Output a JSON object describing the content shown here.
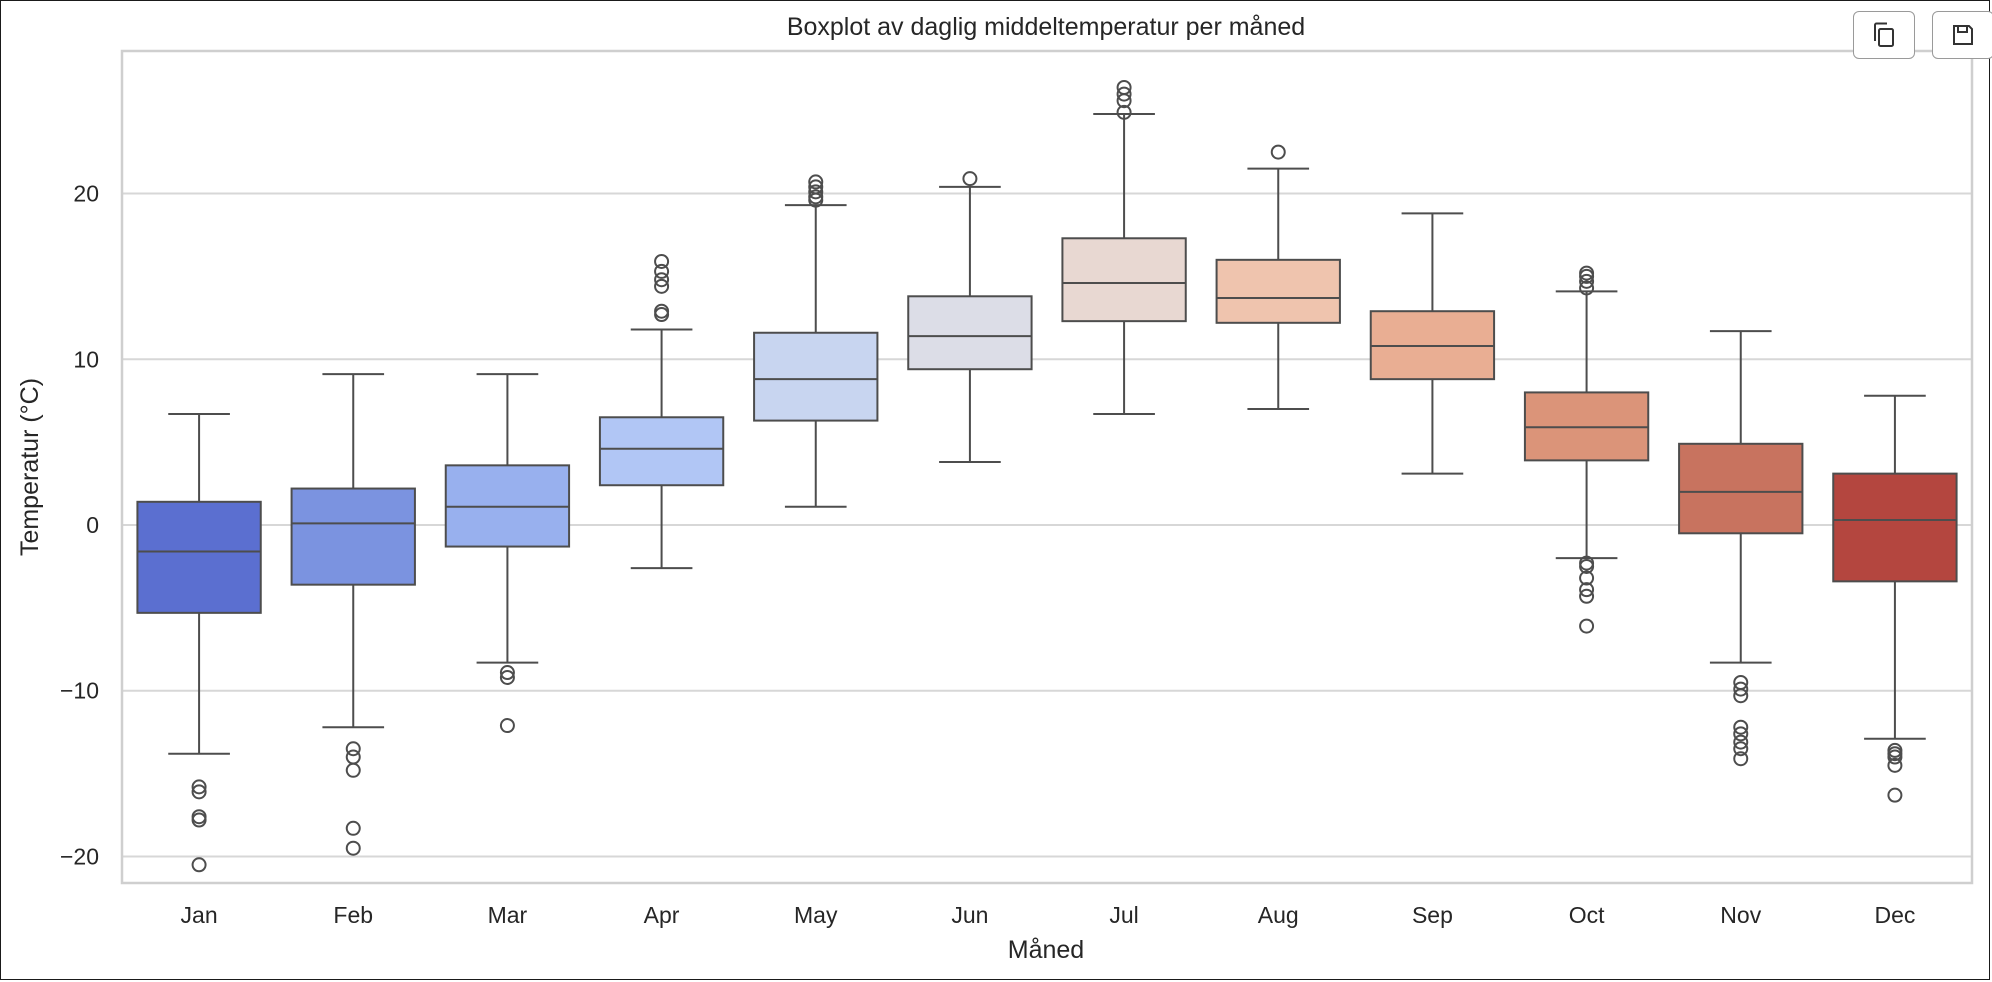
{
  "toolbar": {
    "copy_icon": "copy-icon",
    "save_icon": "save-icon"
  },
  "chart_data": {
    "type": "box",
    "title": "Boxplot av daglig middeltemperatur per måned",
    "xlabel": "Måned",
    "ylabel": "Temperatur (°C)",
    "ylim": [
      -21.6,
      28.6
    ],
    "yticks": [
      -20,
      -10,
      0,
      10,
      20
    ],
    "ytick_labels": [
      "−20",
      "−10",
      "0",
      "10",
      "20"
    ],
    "grid": true,
    "categories": [
      "Jan",
      "Feb",
      "Mar",
      "Apr",
      "May",
      "Jun",
      "Jul",
      "Aug",
      "Sep",
      "Oct",
      "Nov",
      "Dec"
    ],
    "colors": [
      "#5b6fd0",
      "#7b93e0",
      "#98b0ee",
      "#b1c6f5",
      "#c8d5f0",
      "#dcdde7",
      "#e8d8d2",
      "#efc4ae",
      "#e9ae93",
      "#db9479",
      "#c8735f",
      "#b4463f"
    ],
    "boxes": [
      {
        "whislo": -13.8,
        "q1": -5.3,
        "med": -1.6,
        "q3": 1.4,
        "whishi": 6.7,
        "fliers": [
          -15.8,
          -16.1,
          -17.6,
          -17.8,
          -20.5
        ]
      },
      {
        "whislo": -12.2,
        "q1": -3.6,
        "med": 0.1,
        "q3": 2.2,
        "whishi": 9.1,
        "fliers": [
          -13.5,
          -14.0,
          -14.8,
          -18.3,
          -19.5
        ]
      },
      {
        "whislo": -8.3,
        "q1": -1.3,
        "med": 1.1,
        "q3": 3.6,
        "whishi": 9.1,
        "fliers": [
          -8.9,
          -9.2,
          -12.1
        ]
      },
      {
        "whislo": -2.6,
        "q1": 2.4,
        "med": 4.6,
        "q3": 6.5,
        "whishi": 11.8,
        "fliers": [
          12.7,
          12.9,
          14.4,
          14.8,
          15.3,
          15.9
        ]
      },
      {
        "whislo": 1.1,
        "q1": 6.3,
        "med": 8.8,
        "q3": 11.6,
        "whishi": 19.3,
        "fliers": [
          19.6,
          19.8,
          20.1,
          20.4,
          20.7
        ]
      },
      {
        "whislo": 3.8,
        "q1": 9.4,
        "med": 11.4,
        "q3": 13.8,
        "whishi": 20.4,
        "fliers": [
          20.9
        ]
      },
      {
        "whislo": 6.7,
        "q1": 12.3,
        "med": 14.6,
        "q3": 17.3,
        "whishi": 24.8,
        "fliers": [
          24.9,
          25.6,
          26.0,
          26.4
        ]
      },
      {
        "whislo": 7.0,
        "q1": 12.2,
        "med": 13.7,
        "q3": 16.0,
        "whishi": 21.5,
        "fliers": [
          22.5
        ]
      },
      {
        "whislo": 3.1,
        "q1": 8.8,
        "med": 10.8,
        "q3": 12.9,
        "whishi": 18.8,
        "fliers": []
      },
      {
        "whislo": -2.0,
        "q1": 3.9,
        "med": 5.9,
        "q3": 8.0,
        "whishi": 14.1,
        "fliers": [
          14.3,
          14.7,
          15.0,
          15.2,
          -2.3,
          -2.5,
          -3.2,
          -3.9,
          -4.3,
          -6.1
        ]
      },
      {
        "whislo": -8.3,
        "q1": -0.5,
        "med": 2.0,
        "q3": 4.9,
        "whishi": 11.7,
        "fliers": [
          -9.5,
          -9.9,
          -10.3,
          -12.2,
          -12.6,
          -13.1,
          -13.5,
          -14.1
        ]
      },
      {
        "whislo": -12.9,
        "q1": -3.4,
        "med": 0.3,
        "q3": 3.1,
        "whishi": 7.8,
        "fliers": [
          -13.6,
          -13.8,
          -14.0,
          -14.5,
          -16.3
        ]
      }
    ]
  }
}
